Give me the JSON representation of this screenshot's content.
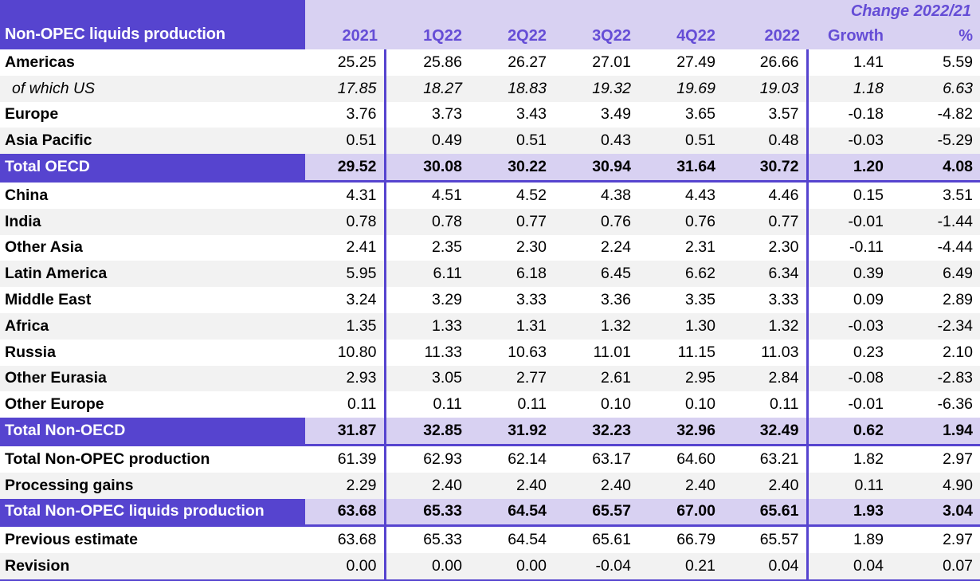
{
  "table": {
    "title": "Non-OPEC liquids production",
    "change_header": "Change 2022/21",
    "columns": [
      "2021",
      "1Q22",
      "2Q22",
      "3Q22",
      "4Q22",
      "2022",
      "Growth",
      "%"
    ],
    "colors": {
      "dark_purple": "#5644CF",
      "light_purple": "#D8D1F2",
      "stripe_gray": "#F2F2F2",
      "header_text_purple": "#654DD6"
    },
    "rows": [
      {
        "label": "Americas",
        "style": "normal",
        "values": [
          "25.25",
          "25.86",
          "26.27",
          "27.01",
          "27.49",
          "26.66",
          "1.41",
          "5.59"
        ]
      },
      {
        "label": "of which US",
        "style": "italic",
        "values": [
          "17.85",
          "18.27",
          "18.83",
          "19.32",
          "19.69",
          "19.03",
          "1.18",
          "6.63"
        ]
      },
      {
        "label": "Europe",
        "style": "normal",
        "values": [
          "3.76",
          "3.73",
          "3.43",
          "3.49",
          "3.65",
          "3.57",
          "-0.18",
          "-4.82"
        ]
      },
      {
        "label": "Asia Pacific",
        "style": "normal",
        "values": [
          "0.51",
          "0.49",
          "0.51",
          "0.43",
          "0.51",
          "0.48",
          "-0.03",
          "-5.29"
        ]
      },
      {
        "label": "Total OECD",
        "style": "total",
        "border_bottom": true,
        "values": [
          "29.52",
          "30.08",
          "30.22",
          "30.94",
          "31.64",
          "30.72",
          "1.20",
          "4.08"
        ]
      },
      {
        "label": "China",
        "style": "normal",
        "values": [
          "4.31",
          "4.51",
          "4.52",
          "4.38",
          "4.43",
          "4.46",
          "0.15",
          "3.51"
        ]
      },
      {
        "label": "India",
        "style": "normal",
        "values": [
          "0.78",
          "0.78",
          "0.77",
          "0.76",
          "0.76",
          "0.77",
          "-0.01",
          "-1.44"
        ]
      },
      {
        "label": "Other Asia",
        "style": "normal",
        "values": [
          "2.41",
          "2.35",
          "2.30",
          "2.24",
          "2.31",
          "2.30",
          "-0.11",
          "-4.44"
        ]
      },
      {
        "label": "Latin America",
        "style": "normal",
        "values": [
          "5.95",
          "6.11",
          "6.18",
          "6.45",
          "6.62",
          "6.34",
          "0.39",
          "6.49"
        ]
      },
      {
        "label": "Middle East",
        "style": "normal",
        "values": [
          "3.24",
          "3.29",
          "3.33",
          "3.36",
          "3.35",
          "3.33",
          "0.09",
          "2.89"
        ]
      },
      {
        "label": "Africa",
        "style": "normal",
        "values": [
          "1.35",
          "1.33",
          "1.31",
          "1.32",
          "1.30",
          "1.32",
          "-0.03",
          "-2.34"
        ]
      },
      {
        "label": "Russia",
        "style": "normal",
        "values": [
          "10.80",
          "11.33",
          "10.63",
          "11.01",
          "11.15",
          "11.03",
          "0.23",
          "2.10"
        ]
      },
      {
        "label": "Other Eurasia",
        "style": "normal",
        "values": [
          "2.93",
          "3.05",
          "2.77",
          "2.61",
          "2.95",
          "2.84",
          "-0.08",
          "-2.83"
        ]
      },
      {
        "label": "Other Europe",
        "style": "normal",
        "values": [
          "0.11",
          "0.11",
          "0.11",
          "0.10",
          "0.10",
          "0.11",
          "-0.01",
          "-6.36"
        ]
      },
      {
        "label": "Total Non-OECD",
        "style": "total",
        "border_bottom": true,
        "values": [
          "31.87",
          "32.85",
          "31.92",
          "32.23",
          "32.96",
          "32.49",
          "0.62",
          "1.94"
        ]
      },
      {
        "label": "Total Non-OPEC production",
        "style": "normal",
        "values": [
          "61.39",
          "62.93",
          "62.14",
          "63.17",
          "64.60",
          "63.21",
          "1.82",
          "2.97"
        ]
      },
      {
        "label": "Processing gains",
        "style": "normal",
        "values": [
          "2.29",
          "2.40",
          "2.40",
          "2.40",
          "2.40",
          "2.40",
          "0.11",
          "4.90"
        ]
      },
      {
        "label": "Total Non-OPEC liquids production",
        "style": "total",
        "border_bottom": true,
        "values": [
          "63.68",
          "65.33",
          "64.54",
          "65.57",
          "67.00",
          "65.61",
          "1.93",
          "3.04"
        ]
      },
      {
        "label": "Previous estimate",
        "style": "normal",
        "values": [
          "63.68",
          "65.33",
          "64.54",
          "65.61",
          "66.79",
          "65.57",
          "1.89",
          "2.97"
        ]
      },
      {
        "label": "Revision",
        "style": "normal",
        "values": [
          "0.00",
          "0.00",
          "0.00",
          "-0.04",
          "0.21",
          "0.04",
          "0.04",
          "0.07"
        ]
      }
    ]
  }
}
